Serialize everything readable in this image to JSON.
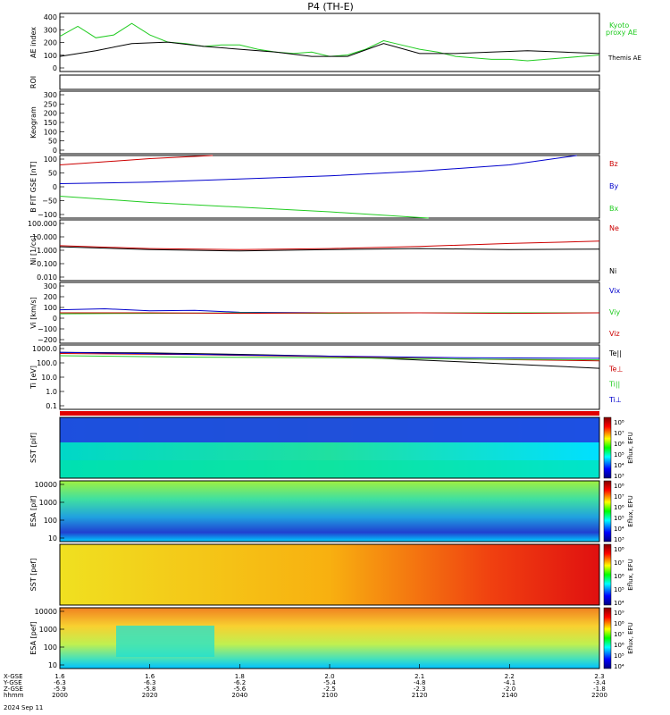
{
  "title": "P4 (TH-E)",
  "date_label": "2024 Sep 11",
  "colors": {
    "ae_green": "#22cc22",
    "ae_black": "#000000",
    "bz": "#cc0000",
    "by": "#22cc22",
    "bx": "#0000cc",
    "ne": "#cc0000",
    "ni": "#000000"
  },
  "chart_data": [
    {
      "type": "line",
      "panel": "ae",
      "ylabel": "AE index",
      "ylim": [
        -5,
        400
      ],
      "yticks": [
        "400",
        "300",
        "200",
        "100",
        "0"
      ],
      "series": [
        {
          "name": "Kyoto proxy AE",
          "color": "#22cc22",
          "x": [
            0,
            4,
            8,
            12,
            16,
            20,
            24,
            28,
            32,
            36,
            40,
            44,
            48,
            52,
            56,
            60,
            64,
            68,
            72,
            76,
            80,
            84,
            88,
            92,
            96,
            100,
            104,
            108,
            112,
            116,
            120
          ],
          "values": [
            240,
            310,
            230,
            250,
            330,
            250,
            200,
            190,
            170,
            180,
            180,
            150,
            130,
            120,
            130,
            100,
            110,
            150,
            210,
            180,
            150,
            130,
            100,
            90,
            80,
            80,
            70,
            80,
            90,
            100,
            110
          ]
        },
        {
          "name": "Themis AE",
          "color": "#000000",
          "x": [
            0,
            8,
            16,
            24,
            32,
            40,
            48,
            56,
            64,
            72,
            80,
            88,
            96,
            104,
            112,
            120
          ],
          "values": [
            100,
            140,
            190,
            200,
            170,
            150,
            130,
            100,
            100,
            190,
            120,
            120,
            130,
            140,
            130,
            120
          ]
        }
      ],
      "legend": [
        "Kyoto",
        "proxy AE",
        "Themis AE"
      ]
    },
    {
      "type": "line",
      "panel": "roi",
      "ylabel": "ROI",
      "ylim": [
        0,
        1
      ],
      "yticks": []
    },
    {
      "type": "line",
      "panel": "keogram",
      "ylabel": "Keogram",
      "ylim": [
        0,
        300
      ],
      "yticks": [
        "300",
        "250",
        "200",
        "150",
        "100",
        "50",
        "0"
      ]
    },
    {
      "type": "line",
      "panel": "bfield",
      "ylabel": "B FIT GSE [nT]",
      "ylim": [
        -100,
        100
      ],
      "yticks": [
        "100",
        "50",
        "0",
        "−50",
        "−100"
      ],
      "series": [
        {
          "name": "Bz",
          "color": "#cc0000",
          "x": [
            0,
            10,
            20,
            34
          ],
          "values": [
            70,
            80,
            90,
            100
          ]
        },
        {
          "name": "By",
          "color": "#0000cc",
          "x": [
            0,
            20,
            40,
            60,
            80,
            100,
            115
          ],
          "values": [
            10,
            15,
            25,
            35,
            50,
            70,
            100
          ]
        },
        {
          "name": "Bx",
          "color": "#22cc22",
          "x": [
            0,
            20,
            40,
            60,
            82
          ],
          "values": [
            -30,
            -50,
            -65,
            -80,
            -100
          ]
        }
      ]
    },
    {
      "type": "line",
      "panel": "density",
      "ylabel": "Ni [1/cc]",
      "ylim": [
        0.01,
        100
      ],
      "yticks": [
        "100.000",
        "10.000",
        "1.000",
        "0.100",
        "0.010"
      ],
      "log": true,
      "series": [
        {
          "name": "Ne",
          "color": "#cc0000",
          "x": [
            0,
            20,
            40,
            60,
            80,
            100,
            120
          ],
          "values": [
            2,
            1.3,
            1.1,
            1.3,
            1.8,
            2.8,
            4
          ]
        },
        {
          "name": "Ni",
          "color": "#000000",
          "x": [
            0,
            20,
            40,
            60,
            80,
            100,
            120
          ],
          "values": [
            1.7,
            1.1,
            0.9,
            1.1,
            1.3,
            1.1,
            1.2
          ]
        }
      ]
    },
    {
      "type": "line",
      "panel": "velocity",
      "ylabel": "Vi [km/s]",
      "ylim": [
        -300,
        300
      ],
      "yticks": [
        "300",
        "200",
        "100",
        "0",
        "−100",
        "−200"
      ],
      "series": [
        {
          "name": "Vix",
          "color": "#0000cc",
          "x": [
            0,
            10,
            20,
            30,
            40,
            60,
            80,
            100,
            120
          ],
          "values": [
            30,
            40,
            20,
            25,
            5,
            0,
            0,
            0,
            0
          ]
        },
        {
          "name": "Viy",
          "color": "#22cc22",
          "x": [
            0,
            20,
            40,
            60,
            80,
            100,
            120
          ],
          "values": [
            -10,
            -5,
            0,
            -5,
            0,
            0,
            0
          ]
        },
        {
          "name": "Viz",
          "color": "#cc0000",
          "x": [
            0,
            20,
            40,
            60,
            80,
            100,
            120
          ],
          "values": [
            0,
            0,
            -5,
            0,
            0,
            -5,
            0
          ]
        }
      ]
    },
    {
      "type": "line",
      "panel": "temperature",
      "ylabel": "Ti [eV]",
      "ylim": [
        0.05,
        10000
      ],
      "log": true,
      "yticks": [
        "1000.0",
        "100.0",
        "10.0",
        "1.0",
        "0.1"
      ],
      "series": [
        {
          "name": "Te||",
          "color": "#000000",
          "x": [
            0,
            20,
            40,
            60,
            75,
            90,
            105,
            120
          ],
          "values": [
            2500,
            2200,
            1700,
            1200,
            700,
            400,
            220,
            120
          ]
        },
        {
          "name": "Te⊥",
          "color": "#cc0000",
          "x": [
            0,
            30,
            60,
            90,
            120
          ],
          "values": [
            2000,
            1600,
            1100,
            700,
            500
          ]
        },
        {
          "name": "Ti||",
          "color": "#22cc22",
          "x": [
            0,
            30,
            60,
            90,
            120
          ],
          "values": [
            1300,
            1000,
            900,
            700,
            600
          ]
        },
        {
          "name": "Ti⊥",
          "color": "#0000cc",
          "x": [
            0,
            30,
            60,
            90,
            120
          ],
          "values": [
            2500,
            1700,
            1200,
            900,
            800
          ]
        }
      ]
    },
    {
      "type": "heatmap",
      "panel": "sst_pif",
      "ylabel": "SST [pif]",
      "colorbar_label": "Eflux, EFU",
      "cbticks": [
        "10⁸",
        "10⁷",
        "10⁶",
        "10⁵",
        "10⁴",
        "10³"
      ]
    },
    {
      "type": "heatmap",
      "panel": "esa_pif",
      "ylabel": "ESA [pif]",
      "colorbar_label": "Eflux, EFU",
      "yticks": [
        "10000",
        "1000",
        "100",
        "10"
      ],
      "cbticks": [
        "10⁸",
        "10⁷",
        "10⁶",
        "10⁵",
        "10⁴",
        "10³"
      ]
    },
    {
      "type": "heatmap",
      "panel": "sst_pef",
      "ylabel": "SST [pef]",
      "colorbar_label": "Eflux, EFU",
      "cbticks": [
        "10⁸",
        "10⁷",
        "10⁶",
        "10⁵",
        "10⁴"
      ]
    },
    {
      "type": "heatmap",
      "panel": "esa_pef",
      "ylabel": "ESA [pef]",
      "colorbar_label": "Eflux, EFU",
      "yticks": [
        "10000",
        "1000",
        "100",
        "10"
      ],
      "cbticks": [
        "10⁹",
        "10⁸",
        "10⁷",
        "10⁶",
        "10⁵",
        "10⁴"
      ]
    }
  ],
  "time_axis": {
    "row_labels": [
      "X-GSE",
      "Y-GSE",
      "Z-GSE",
      "hhmm"
    ],
    "columns": [
      {
        "x": "1.6",
        "y": "-6.3",
        "z": "-5.9",
        "t": "2000"
      },
      {
        "x": "1.6",
        "y": "-6.3",
        "z": "-5.8",
        "t": "2020"
      },
      {
        "x": "1.8",
        "y": "-6.2",
        "z": "-5.6",
        "t": "2040"
      },
      {
        "x": "2.0",
        "y": "-5.4",
        "z": "-2.5",
        "t": "2100"
      },
      {
        "x": "2.1",
        "y": "-4.8",
        "z": "-2.3",
        "t": "2120"
      },
      {
        "x": "2.2",
        "y": "-4.1",
        "z": "-2.0",
        "t": "2140"
      },
      {
        "x": "2.3",
        "y": "-3.4",
        "z": "-1.8",
        "t": "2200"
      }
    ]
  }
}
